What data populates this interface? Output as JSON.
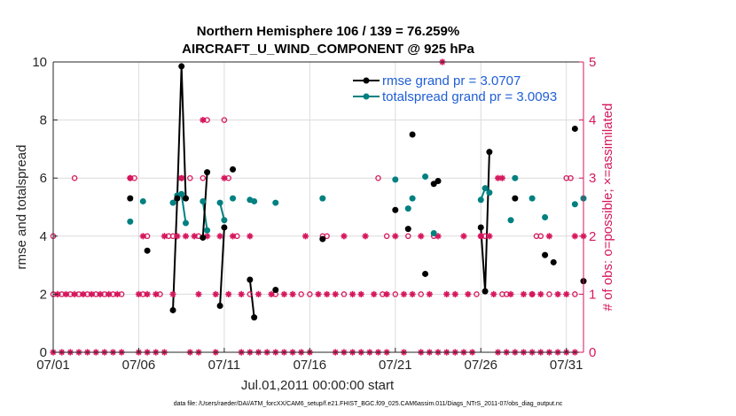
{
  "chart_data": {
    "type": "scatter",
    "title_line1": "Northern Hemisphere 106 / 139 = 76.259%",
    "title_line2": "AIRCRAFT_U_WIND_COMPONENT @ 925 hPa",
    "xlabel": "Jul.01,2011 00:00:00 start",
    "ylabel_left": "rmse and totalspread",
    "ylabel_right": "# of obs: o=possible; ×=assimilated",
    "footnote": "data file: /Users/raeder/DAI/ATM_forcXX/CAM6_setup/f.e21.FHIST_BGC.f09_025.CAM6assim.011/Diags_NTrS_2011-07/obs_diag_output.nc",
    "xlim": [
      0,
      31
    ],
    "ylim_left": [
      0,
      10
    ],
    "ylim_right": [
      0,
      5
    ],
    "x_tick_values": [
      0,
      5,
      10,
      15,
      20,
      25,
      30
    ],
    "x_tick_labels": [
      "07/01",
      "07/06",
      "07/11",
      "07/16",
      "07/21",
      "07/26",
      "07/31"
    ],
    "y_left_ticks": [
      "0",
      "2",
      "4",
      "6",
      "8",
      "10"
    ],
    "y_right_ticks": [
      "0",
      "1",
      "2",
      "3",
      "4",
      "5"
    ],
    "colors": {
      "rmse": "#000000",
      "spread": "#008080",
      "obs": "#d6175d",
      "legend_text": "#1f5fd6"
    },
    "legend": [
      {
        "label": "rmse grand pr = 3.0707",
        "color": "#000000"
      },
      {
        "label": "totalspread grand pr = 3.0093",
        "color": "#008080"
      }
    ],
    "rmse": [
      [
        4.5,
        5.3
      ],
      [
        5.5,
        3.5
      ],
      [
        7.0,
        1.45
      ],
      [
        7.25,
        5.3
      ],
      [
        7.5,
        9.85
      ],
      [
        7.75,
        5.3
      ],
      [
        8.75,
        3.95
      ],
      [
        9.0,
        6.2
      ],
      [
        9.75,
        1.6
      ],
      [
        10.0,
        4.3
      ],
      [
        10.5,
        6.3
      ],
      [
        11.5,
        2.5
      ],
      [
        11.75,
        1.2
      ],
      [
        13.0,
        2.15
      ],
      [
        15.75,
        3.9
      ],
      [
        20.0,
        4.9
      ],
      [
        20.75,
        4.25
      ],
      [
        21.0,
        7.5
      ],
      [
        21.75,
        2.7
      ],
      [
        22.25,
        5.8
      ],
      [
        22.5,
        5.9
      ],
      [
        25.0,
        4.3
      ],
      [
        25.25,
        2.1
      ],
      [
        25.5,
        6.9
      ],
      [
        27.0,
        5.3
      ],
      [
        28.75,
        3.35
      ],
      [
        29.25,
        3.1
      ],
      [
        30.5,
        7.7
      ],
      [
        31.0,
        2.45
      ]
    ],
    "rmse_lines": [
      [
        [
          7.0,
          1.45
        ],
        [
          7.25,
          5.3
        ],
        [
          7.5,
          9.85
        ],
        [
          7.75,
          5.3
        ]
      ],
      [
        [
          8.75,
          3.95
        ],
        [
          9.0,
          6.2
        ]
      ],
      [
        [
          9.75,
          1.6
        ],
        [
          10.0,
          4.3
        ]
      ],
      [
        [
          11.5,
          2.5
        ],
        [
          11.75,
          1.2
        ]
      ],
      [
        [
          25.0,
          4.3
        ],
        [
          25.25,
          2.1
        ],
        [
          25.5,
          6.9
        ]
      ]
    ],
    "spread": [
      [
        4.5,
        4.5
      ],
      [
        5.25,
        5.2
      ],
      [
        7.0,
        5.15
      ],
      [
        7.25,
        5.4
      ],
      [
        7.5,
        5.45
      ],
      [
        7.75,
        4.45
      ],
      [
        8.75,
        5.2
      ],
      [
        9.0,
        4.2
      ],
      [
        9.75,
        5.15
      ],
      [
        10.0,
        4.55
      ],
      [
        10.5,
        5.3
      ],
      [
        11.5,
        5.25
      ],
      [
        11.75,
        5.2
      ],
      [
        13.0,
        5.15
      ],
      [
        15.75,
        5.3
      ],
      [
        20.0,
        5.95
      ],
      [
        20.75,
        4.95
      ],
      [
        21.0,
        5.3
      ],
      [
        21.75,
        6.05
      ],
      [
        22.25,
        4.1
      ],
      [
        25.0,
        5.25
      ],
      [
        25.25,
        5.65
      ],
      [
        25.5,
        5.5
      ],
      [
        26.75,
        4.55
      ],
      [
        27.0,
        6.0
      ],
      [
        28.0,
        5.3
      ],
      [
        28.75,
        4.65
      ],
      [
        30.5,
        5.1
      ],
      [
        31.0,
        5.3
      ]
    ],
    "spread_lines": [
      [
        [
          7.0,
          5.15
        ],
        [
          7.25,
          5.4
        ],
        [
          7.5,
          5.45
        ],
        [
          7.75,
          4.45
        ]
      ],
      [
        [
          8.75,
          5.2
        ],
        [
          9.0,
          4.2
        ]
      ],
      [
        [
          9.75,
          5.15
        ],
        [
          10.0,
          4.55
        ]
      ],
      [
        [
          25.0,
          5.25
        ],
        [
          25.25,
          5.65
        ],
        [
          25.5,
          5.5
        ]
      ]
    ],
    "obs_possible": [
      [
        0,
        2
      ],
      [
        0,
        1
      ],
      [
        0.5,
        1
      ],
      [
        1.0,
        1
      ],
      [
        1.5,
        1
      ],
      [
        2.0,
        1
      ],
      [
        2.5,
        1
      ],
      [
        3.0,
        1
      ],
      [
        3.5,
        1
      ],
      [
        4.0,
        1
      ],
      [
        1.25,
        3
      ],
      [
        4.5,
        3
      ],
      [
        4.75,
        3
      ],
      [
        5.25,
        1
      ],
      [
        5.5,
        2
      ],
      [
        6.25,
        1
      ],
      [
        6.75,
        2
      ],
      [
        7.0,
        2
      ],
      [
        7.5,
        3
      ],
      [
        8.0,
        3
      ],
      [
        8.5,
        2
      ],
      [
        8.75,
        3
      ],
      [
        9.0,
        4
      ],
      [
        10.0,
        4
      ],
      [
        10.25,
        3
      ],
      [
        10.75,
        2
      ],
      [
        11.5,
        1
      ],
      [
        13.0,
        1
      ],
      [
        14.5,
        1
      ],
      [
        15.0,
        1
      ],
      [
        15.75,
        2
      ],
      [
        16.0,
        2
      ],
      [
        17.0,
        1
      ],
      [
        19.0,
        3
      ],
      [
        19.25,
        1
      ],
      [
        19.5,
        2
      ],
      [
        20.0,
        1
      ],
      [
        20.75,
        2
      ],
      [
        21.5,
        1
      ],
      [
        22.25,
        2
      ],
      [
        24.75,
        1
      ],
      [
        25.0,
        2
      ],
      [
        25.25,
        2
      ],
      [
        26.25,
        1
      ],
      [
        26.5,
        1
      ],
      [
        27.0,
        3
      ],
      [
        28.0,
        1
      ],
      [
        28.25,
        2
      ],
      [
        28.5,
        2
      ],
      [
        29.0,
        1
      ],
      [
        30.0,
        3
      ],
      [
        30.25,
        3
      ],
      [
        30.5,
        1
      ]
    ],
    "obs_assimilated": [
      [
        0.25,
        1
      ],
      [
        0.75,
        1
      ],
      [
        1.25,
        1
      ],
      [
        1.75,
        1
      ],
      [
        2.25,
        1
      ],
      [
        2.75,
        1
      ],
      [
        3.25,
        1
      ],
      [
        3.75,
        1
      ],
      [
        4.5,
        3
      ],
      [
        5.0,
        1
      ],
      [
        5.25,
        2
      ],
      [
        5.5,
        1
      ],
      [
        6.0,
        1
      ],
      [
        6.5,
        2
      ],
      [
        7.0,
        1
      ],
      [
        7.25,
        2
      ],
      [
        7.5,
        3
      ],
      [
        7.75,
        2
      ],
      [
        8.25,
        2
      ],
      [
        8.5,
        1
      ],
      [
        8.75,
        4
      ],
      [
        9.0,
        2
      ],
      [
        9.5,
        1
      ],
      [
        9.75,
        2
      ],
      [
        10.0,
        3
      ],
      [
        10.25,
        1
      ],
      [
        10.5,
        2
      ],
      [
        11.0,
        1
      ],
      [
        11.5,
        2
      ],
      [
        12.0,
        1
      ],
      [
        12.75,
        1
      ],
      [
        13.5,
        1
      ],
      [
        14.0,
        1
      ],
      [
        14.75,
        2
      ],
      [
        15.5,
        1
      ],
      [
        16.0,
        1
      ],
      [
        16.5,
        1
      ],
      [
        17.0,
        2
      ],
      [
        17.5,
        1
      ],
      [
        18.0,
        1
      ],
      [
        18.25,
        2
      ],
      [
        18.75,
        1
      ],
      [
        19.5,
        1
      ],
      [
        20.0,
        2
      ],
      [
        20.5,
        1
      ],
      [
        21.0,
        1
      ],
      [
        21.5,
        2
      ],
      [
        22.0,
        1
      ],
      [
        22.5,
        2
      ],
      [
        22.75,
        5
      ],
      [
        23.0,
        1
      ],
      [
        23.5,
        1
      ],
      [
        24.0,
        2
      ],
      [
        24.25,
        1
      ],
      [
        25.0,
        2
      ],
      [
        25.5,
        2
      ],
      [
        25.75,
        1
      ],
      [
        26.0,
        3
      ],
      [
        26.25,
        3
      ],
      [
        26.75,
        1
      ],
      [
        27.5,
        1
      ],
      [
        28.0,
        1
      ],
      [
        28.5,
        1
      ],
      [
        29.0,
        2
      ],
      [
        29.5,
        1
      ],
      [
        30.0,
        1
      ],
      [
        30.5,
        2
      ],
      [
        31.0,
        2
      ]
    ],
    "obs_zero_x": [
      0,
      0.5,
      1,
      1.5,
      2,
      2.5,
      3,
      3.5,
      4,
      5,
      5.5,
      6,
      6.5,
      8,
      8.5,
      9.5,
      11,
      11.5,
      12,
      12.5,
      13,
      13.5,
      14,
      14.5,
      15,
      16.5,
      17,
      17.5,
      18,
      18.5,
      19,
      19.5,
      20.5,
      21.5,
      22,
      22.5,
      23,
      23.5,
      24,
      24.5,
      26,
      26.5,
      27,
      27.5,
      28,
      28.5,
      29,
      29.5,
      30,
      30.5
    ]
  }
}
